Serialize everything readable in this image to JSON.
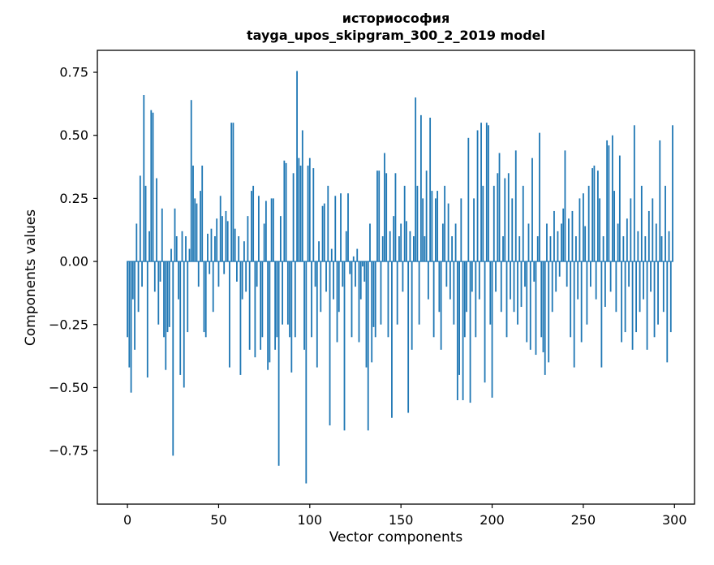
{
  "title": {
    "line1": "историософия",
    "line2": "tayga_upos_skipgram_300_2_2019 model"
  },
  "chart_data": {
    "type": "bar",
    "title": "историософия — tayga_upos_skipgram_300_2_2019 model",
    "xlabel": "Vector components",
    "ylabel": "Components values",
    "xlim": [
      -16.5,
      311
    ],
    "ylim": [
      -0.962,
      0.837
    ],
    "xticks": [
      0,
      50,
      100,
      150,
      200,
      250,
      300
    ],
    "yticks": [
      -0.75,
      -0.5,
      -0.25,
      0,
      0.25,
      0.5,
      0.75
    ],
    "grid": false,
    "legend": "none",
    "bar_color": "#1f77b4",
    "x_start": 0,
    "values": [
      -0.3,
      -0.42,
      -0.52,
      -0.15,
      -0.35,
      0.15,
      -0.2,
      0.34,
      -0.1,
      0.66,
      0.3,
      -0.46,
      0.12,
      0.6,
      0.59,
      -0.12,
      0.33,
      -0.25,
      -0.08,
      0.21,
      -0.3,
      -0.43,
      -0.28,
      -0.26,
      0.05,
      -0.77,
      0.21,
      0.1,
      -0.15,
      -0.45,
      0.12,
      -0.5,
      0.1,
      -0.28,
      0.05,
      0.64,
      0.38,
      0.25,
      0.23,
      -0.1,
      0.28,
      0.38,
      -0.28,
      -0.3,
      0.11,
      -0.05,
      0.13,
      -0.2,
      0.1,
      0.17,
      -0.1,
      0.26,
      0.18,
      -0.05,
      0.2,
      0.16,
      -0.42,
      0.55,
      0.55,
      0.13,
      -0.08,
      0.1,
      -0.45,
      -0.15,
      0.08,
      -0.12,
      0.18,
      -0.35,
      0.28,
      0.3,
      -0.38,
      -0.1,
      0.26,
      -0.35,
      -0.3,
      0.15,
      0.24,
      -0.43,
      -0.4,
      0.25,
      0.25,
      -0.35,
      -0.3,
      -0.81,
      0.18,
      -0.25,
      0.4,
      0.39,
      -0.25,
      -0.3,
      -0.44,
      0.35,
      -0.3,
      0.755,
      0.41,
      0.38,
      0.52,
      -0.35,
      -0.88,
      0.38,
      0.41,
      -0.3,
      0.37,
      -0.1,
      -0.42,
      0.08,
      -0.2,
      0.22,
      0.23,
      -0.12,
      0.3,
      -0.65,
      0.05,
      -0.15,
      0.26,
      -0.32,
      -0.2,
      0.27,
      -0.1,
      -0.67,
      0.12,
      0.27,
      -0.05,
      -0.3,
      0.02,
      -0.1,
      0.05,
      -0.32,
      -0.15,
      -0.02,
      -0.08,
      -0.42,
      -0.67,
      0.15,
      -0.4,
      -0.26,
      -0.3,
      0.36,
      0.36,
      -0.25,
      0.1,
      0.43,
      0.35,
      -0.3,
      0.12,
      -0.62,
      0.18,
      0.35,
      -0.25,
      0.1,
      0.15,
      -0.12,
      0.3,
      0.16,
      -0.6,
      0.12,
      -0.35,
      0.1,
      0.65,
      0.3,
      -0.25,
      0.58,
      0.25,
      0.1,
      0.36,
      -0.15,
      0.57,
      0.28,
      -0.3,
      0.25,
      0.28,
      -0.2,
      -0.35,
      0.15,
      0.3,
      -0.1,
      0.23,
      -0.15,
      0.1,
      -0.25,
      0.15,
      -0.55,
      -0.45,
      0.25,
      -0.55,
      -0.3,
      -0.2,
      0.49,
      -0.56,
      -0.12,
      0.25,
      -0.3,
      0.52,
      -0.15,
      0.55,
      0.3,
      -0.48,
      0.55,
      0.54,
      -0.25,
      -0.54,
      0.3,
      -0.12,
      0.35,
      0.43,
      -0.2,
      0.1,
      0.33,
      -0.3,
      0.35,
      -0.15,
      0.25,
      -0.2,
      0.44,
      -0.25,
      0.1,
      -0.18,
      0.3,
      -0.1,
      -0.32,
      0.15,
      -0.35,
      0.41,
      -0.08,
      -0.37,
      0.1,
      0.51,
      -0.3,
      -0.36,
      -0.45,
      0.15,
      -0.4,
      0.1,
      -0.2,
      0.2,
      -0.12,
      0.12,
      -0.06,
      0.15,
      0.21,
      0.44,
      -0.1,
      0.17,
      -0.3,
      0.2,
      -0.42,
      0.1,
      -0.15,
      0.25,
      -0.32,
      0.27,
      0.14,
      -0.25,
      0.3,
      -0.1,
      0.37,
      0.38,
      -0.15,
      0.36,
      0.25,
      -0.42,
      0.1,
      -0.18,
      0.48,
      0.46,
      -0.12,
      0.5,
      0.28,
      -0.2,
      0.15,
      0.42,
      -0.32,
      0.1,
      -0.28,
      0.17,
      -0.1,
      0.25,
      -0.35,
      0.54,
      -0.28,
      0.12,
      -0.2,
      0.3,
      -0.15,
      0.1,
      -0.35,
      0.2,
      -0.12,
      0.25,
      -0.3,
      0.15,
      -0.25,
      0.48,
      0.1,
      -0.2,
      0.3,
      -0.4,
      0.12,
      -0.28,
      0.54
    ]
  }
}
